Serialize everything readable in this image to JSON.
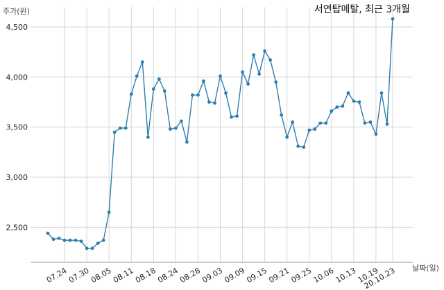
{
  "chart_data": {
    "type": "line",
    "title": "서연탑메탈, 최근 3개월",
    "ylabel": "주가(원)",
    "xlabel": "날짜(일)",
    "ylim": [
      2150,
      4700
    ],
    "yticks": [
      2500,
      3000,
      3500,
      4000,
      4500
    ],
    "ytick_labels": [
      "2,500",
      "3,000",
      "3,500",
      "4,000",
      "4,500"
    ],
    "xtick_labels": [
      "07.24",
      "07.30",
      "08.05",
      "08.11",
      "08.18",
      "08.24",
      "08.28",
      "09.03",
      "09.09",
      "09.15",
      "09.21",
      "09.25",
      "10.06",
      "10.13",
      "10.19",
      "20.10.23"
    ],
    "xtick_index": [
      3,
      7,
      11,
      15,
      19,
      23,
      27,
      31,
      35,
      39,
      43,
      47,
      51,
      55,
      59,
      62
    ],
    "grid": true,
    "color": "#2e7dad",
    "series": [
      {
        "values": [
          2440,
          2380,
          2390,
          2370,
          2370,
          2370,
          2360,
          2290,
          2290,
          2340,
          2370,
          2650,
          3450,
          3490,
          3490,
          3830,
          4010,
          4150,
          3400,
          3880,
          3980,
          3860,
          3480,
          3490,
          3560,
          3350,
          3820,
          3820,
          3960,
          3750,
          3740,
          4010,
          3840,
          3600,
          3610,
          4050,
          3930,
          4220,
          4030,
          4260,
          4170,
          3950,
          3620,
          3400,
          3550,
          3310,
          3300,
          3470,
          3480,
          3540,
          3540,
          3660,
          3700,
          3710,
          3840,
          3760,
          3750,
          3540,
          3550,
          3430,
          3840,
          3530,
          4580
        ]
      }
    ]
  }
}
